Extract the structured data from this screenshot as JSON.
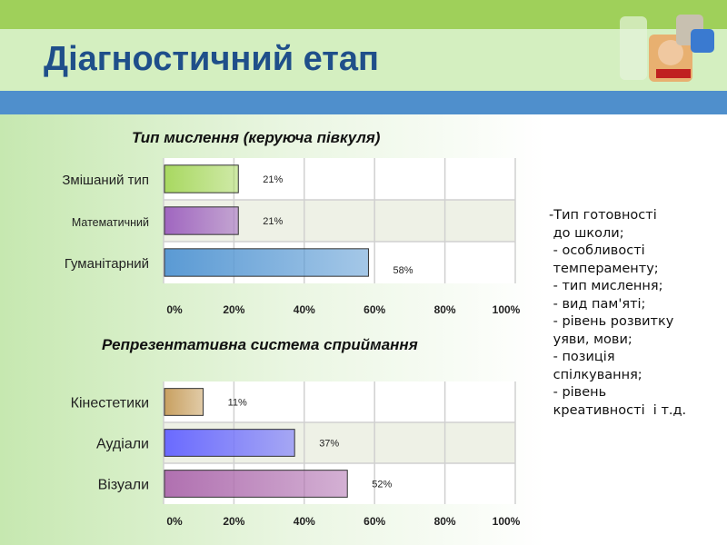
{
  "slide": {
    "title": "Діагностичний етап"
  },
  "notes": [
    "-Тип готовності",
    " до школи;",
    " - особливості",
    " темпераменту;",
    " - тип мислення;",
    " - вид пам'яті;",
    " - рівень розвитку",
    " уяви, мови;",
    " - позиція",
    " спілкування;",
    " - рівень",
    " креативності  і т.д."
  ],
  "chart_data": [
    {
      "type": "bar",
      "orientation": "horizontal",
      "title": "Тип мислення (керуюча півкуля)",
      "categories": [
        "Змішаний тип",
        "Математичний",
        "Гуманітарний"
      ],
      "values": [
        21,
        21,
        58
      ],
      "data_labels": [
        "21%",
        "21%",
        "58%"
      ],
      "colors": [
        "#a8d860",
        "#a066c0",
        "#5a9ad4"
      ],
      "xlim": [
        0,
        100
      ],
      "xticks": [
        "0%",
        "20%",
        "40%",
        "60%",
        "80%",
        "100%"
      ],
      "grid": true
    },
    {
      "type": "bar",
      "orientation": "horizontal",
      "title": "Репрезентативна система сприймання",
      "categories": [
        "Кінестетики",
        "Аудіали",
        "Візуали"
      ],
      "values": [
        11,
        37,
        52
      ],
      "data_labels": [
        "11%",
        "37%",
        "52%"
      ],
      "colors": [
        "#c8a060",
        "#6a6aff",
        "#b070b0"
      ],
      "xlim": [
        0,
        100
      ],
      "xticks": [
        "0%",
        "20%",
        "40%",
        "60%",
        "80%",
        "100%"
      ],
      "grid": true
    }
  ]
}
